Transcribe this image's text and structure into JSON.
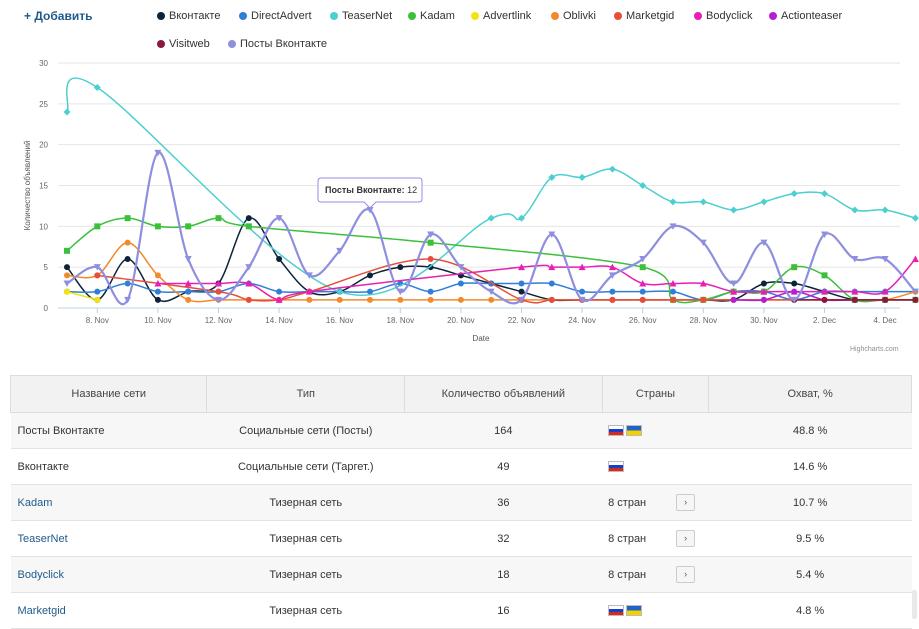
{
  "toolbar": {
    "add_label": "+ Добавить"
  },
  "legend": [
    {
      "name": "Вконтакте",
      "color": "#0d233a"
    },
    {
      "name": "DirectAdvert",
      "color": "#2f7ed8"
    },
    {
      "name": "TeaserNet",
      "color": "#4ccfcf"
    },
    {
      "name": "Kadam",
      "color": "#3cc03c"
    },
    {
      "name": "Advertlink",
      "color": "#f2e30d"
    },
    {
      "name": "Oblivki",
      "color": "#f2892a"
    },
    {
      "name": "Marketgid",
      "color": "#e84d3c"
    },
    {
      "name": "Bodyclick",
      "color": "#e81fb4"
    },
    {
      "name": "Actionteaser",
      "color": "#b41fd1"
    },
    {
      "name": "Visitweb",
      "color": "#8a1a3a"
    },
    {
      "name": "Посты Вконтакте",
      "color": "#8f8fe0"
    }
  ],
  "tooltip": {
    "series": "Посты Вконтакте",
    "value": "12"
  },
  "credit": "Highcharts.com",
  "chart_data": {
    "type": "line",
    "xlabel": "Date",
    "ylabel": "Количество объявлений",
    "ylim": [
      0,
      30
    ],
    "yticks": [
      "0",
      "5",
      "10",
      "15",
      "20",
      "25",
      "30"
    ],
    "xticks": [
      "8. Nov",
      "10. Nov",
      "12. Nov",
      "14. Nov",
      "16. Nov",
      "18. Nov",
      "20. Nov",
      "22. Nov",
      "24. Nov",
      "26. Nov",
      "28. Nov",
      "30. Nov",
      "2. Dec",
      "4. Dec"
    ],
    "x": [
      "7. Nov",
      "8. Nov",
      "9. Nov",
      "10. Nov",
      "11. Nov",
      "12. Nov",
      "13. Nov",
      "14. Nov",
      "15. Nov",
      "16. Nov",
      "17. Nov",
      "18. Nov",
      "19. Nov",
      "20. Nov",
      "21. Nov",
      "22. Nov",
      "23. Nov",
      "24. Nov",
      "25. Nov",
      "26. Nov",
      "27. Nov",
      "28. Nov",
      "29. Nov",
      "30. Nov",
      "1. Dec",
      "2. Dec",
      "3. Dec",
      "4. Dec",
      "5. Dec"
    ],
    "series": [
      {
        "name": "Вконтакте",
        "color": "#0d233a",
        "marker": "circle",
        "values": [
          5,
          1,
          6,
          1,
          2,
          3,
          11,
          6,
          2,
          2,
          4,
          5,
          5,
          4,
          3,
          2,
          1,
          1,
          1,
          1,
          1,
          1,
          1,
          3,
          3,
          2,
          1,
          1,
          1
        ]
      },
      {
        "name": "DirectAdvert",
        "color": "#2f7ed8",
        "marker": "circle",
        "values": [
          2,
          2,
          3,
          2,
          2,
          2,
          3,
          2,
          2,
          2,
          2,
          3,
          2,
          3,
          3,
          3,
          3,
          2,
          2,
          2,
          2,
          1,
          2,
          2,
          1,
          2,
          2,
          2,
          2
        ]
      },
      {
        "name": "TeaserNet",
        "color": "#4ccfcf",
        "marker": "diamond",
        "values": [
          24,
          27,
          null,
          null,
          null,
          null,
          null,
          null,
          null,
          2,
          null,
          null,
          null,
          null,
          11,
          11,
          16,
          16,
          17,
          15,
          13,
          13,
          12,
          13,
          14,
          14,
          12,
          12,
          11
        ]
      },
      {
        "name": "Kadam",
        "color": "#3cc03c",
        "marker": "square",
        "values": [
          7,
          10,
          11,
          10,
          10,
          11,
          10,
          null,
          null,
          null,
          null,
          null,
          8,
          null,
          null,
          null,
          null,
          null,
          null,
          5,
          1,
          1,
          2,
          2,
          5,
          4,
          1,
          1,
          1
        ]
      },
      {
        "name": "Advertlink",
        "color": "#f2e30d",
        "marker": "circle",
        "values": [
          2,
          1,
          null,
          null,
          null,
          null,
          null,
          null,
          null,
          null,
          null,
          null,
          null,
          null,
          null,
          null,
          null,
          null,
          null,
          null,
          null,
          null,
          null,
          null,
          null,
          null,
          null,
          null,
          null
        ]
      },
      {
        "name": "Oblivki",
        "color": "#f2892a",
        "marker": "circle",
        "values": [
          4,
          4,
          8,
          4,
          1,
          1,
          1,
          1,
          1,
          1,
          1,
          1,
          1,
          1,
          1,
          1,
          1,
          1,
          1,
          1,
          1,
          1,
          1,
          1,
          1,
          1,
          1,
          1,
          2
        ]
      },
      {
        "name": "Marketgid",
        "color": "#e84d3c",
        "marker": "circle",
        "values": [
          null,
          4,
          null,
          null,
          null,
          2,
          1,
          1,
          2,
          null,
          null,
          null,
          6,
          null,
          null,
          1,
          1,
          1,
          1,
          1,
          1,
          1,
          1,
          1,
          1,
          1,
          1,
          1,
          1
        ]
      },
      {
        "name": "Bodyclick",
        "color": "#e81fb4",
        "marker": "triangle",
        "values": [
          null,
          null,
          null,
          3,
          3,
          3,
          3,
          1,
          2,
          null,
          null,
          null,
          null,
          null,
          null,
          5,
          5,
          5,
          5,
          3,
          3,
          3,
          2,
          2,
          2,
          2,
          2,
          2,
          6
        ]
      },
      {
        "name": "Actionteaser",
        "color": "#b41fd1",
        "marker": "circle",
        "values": [
          null,
          null,
          null,
          null,
          null,
          null,
          null,
          null,
          null,
          null,
          null,
          null,
          null,
          null,
          null,
          null,
          null,
          null,
          null,
          null,
          null,
          null,
          1,
          1,
          2,
          1,
          1,
          1,
          null
        ]
      },
      {
        "name": "Visitweb",
        "color": "#8a1a3a",
        "marker": "circle",
        "values": [
          null,
          null,
          null,
          null,
          null,
          null,
          null,
          null,
          null,
          null,
          null,
          null,
          null,
          null,
          null,
          null,
          null,
          null,
          null,
          null,
          null,
          null,
          null,
          null,
          1,
          1,
          1,
          1,
          1
        ]
      },
      {
        "name": "Посты Вконтакте",
        "color": "#8f8fe0",
        "marker": "triangle-down",
        "values": [
          3,
          5,
          1,
          19,
          6,
          1,
          5,
          11,
          4,
          7,
          12,
          2,
          9,
          5,
          2,
          1,
          9,
          1,
          4,
          6,
          10,
          8,
          3,
          8,
          1,
          9,
          6,
          6,
          2
        ]
      }
    ]
  },
  "table": {
    "headers": [
      "Название сети",
      "Тип",
      "Количество объявлений",
      "Страны",
      "Охват, %"
    ],
    "rows": [
      {
        "name": "Посты Вконтакте",
        "link": false,
        "type": "Социальные сети (Посты)",
        "count": "164",
        "flags": [
          "ru",
          "ua"
        ],
        "countries": "",
        "coverage": "48.8 %"
      },
      {
        "name": "Вконтакте",
        "link": false,
        "type": "Социальные сети (Таргет.)",
        "count": "49",
        "flags": [
          "ru"
        ],
        "countries": "",
        "coverage": "14.6 %"
      },
      {
        "name": "Kadam",
        "link": true,
        "type": "Тизерная сеть",
        "count": "36",
        "flags": [],
        "countries": "8 стран",
        "coverage": "10.7 %"
      },
      {
        "name": "TeaserNet",
        "link": true,
        "type": "Тизерная сеть",
        "count": "32",
        "flags": [],
        "countries": "8 стран",
        "coverage": "9.5 %"
      },
      {
        "name": "Bodyclick",
        "link": true,
        "type": "Тизерная сеть",
        "count": "18",
        "flags": [],
        "countries": "8 стран",
        "coverage": "5.4 %"
      },
      {
        "name": "Marketgid",
        "link": true,
        "type": "Тизерная сеть",
        "count": "16",
        "flags": [
          "ru",
          "ua"
        ],
        "countries": "",
        "coverage": "4.8 %"
      }
    ]
  }
}
